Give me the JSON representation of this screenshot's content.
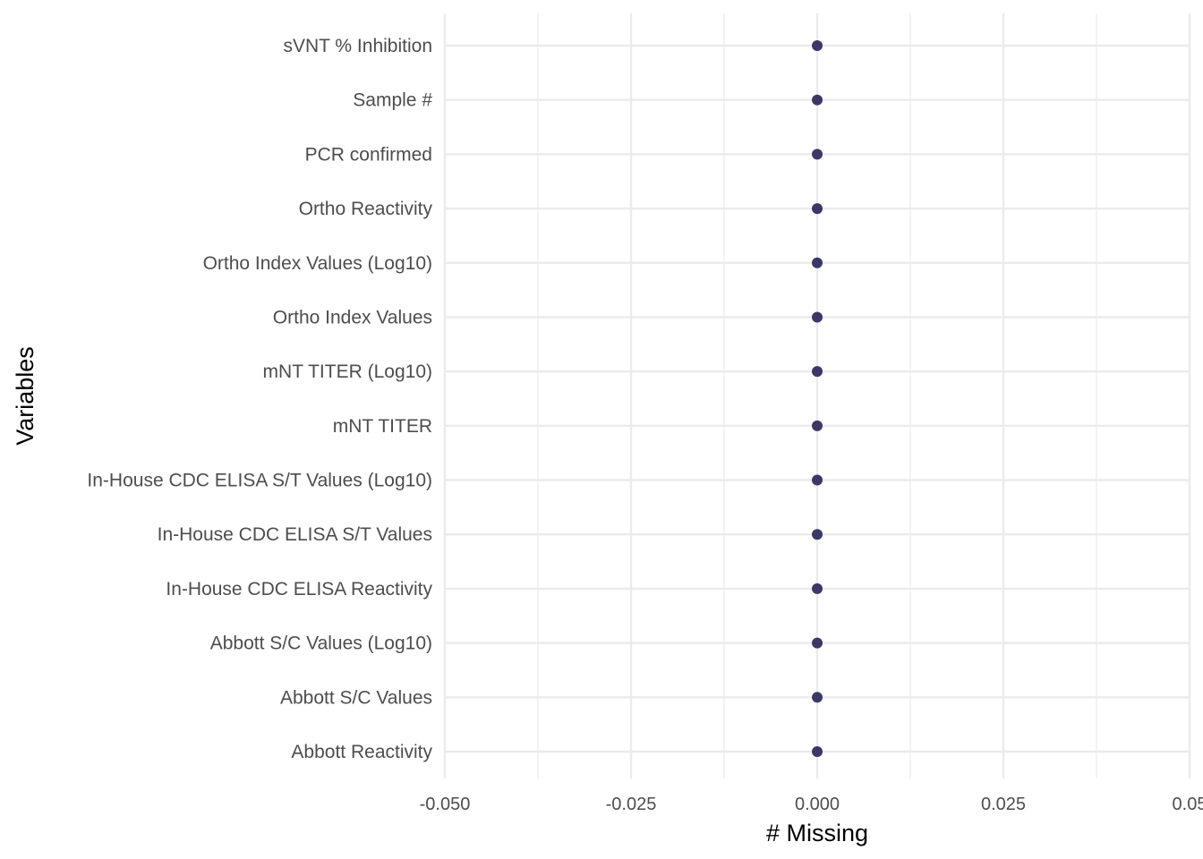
{
  "chart_data": {
    "type": "scatter",
    "title": "",
    "xlabel": "# Missing",
    "ylabel": "Variables",
    "xlim": [
      -0.05,
      0.05
    ],
    "x_ticks": [
      -0.05,
      -0.025,
      0.0,
      0.025,
      0.05
    ],
    "x_tick_labels": [
      "-0.050",
      "-0.025",
      "0.000",
      "0.025",
      "0.05"
    ],
    "grid": true,
    "legend": "none",
    "point_color": "#3b3868",
    "grid_color": "#ebebeb",
    "categories": [
      "Abbott Reactivity",
      "Abbott S/C Values",
      "Abbott S/C Values (Log10)",
      "In-House CDC ELISA Reactivity",
      "In-House CDC ELISA S/T Values",
      "In-House CDC ELISA S/T Values (Log10)",
      "mNT TITER",
      "mNT TITER (Log10)",
      "Ortho Index Values",
      "Ortho Index Values (Log10)",
      "Ortho Reactivity",
      "PCR confirmed",
      "Sample #",
      "sVNT % Inhibition"
    ],
    "values": [
      0,
      0,
      0,
      0,
      0,
      0,
      0,
      0,
      0,
      0,
      0,
      0,
      0,
      0
    ]
  }
}
